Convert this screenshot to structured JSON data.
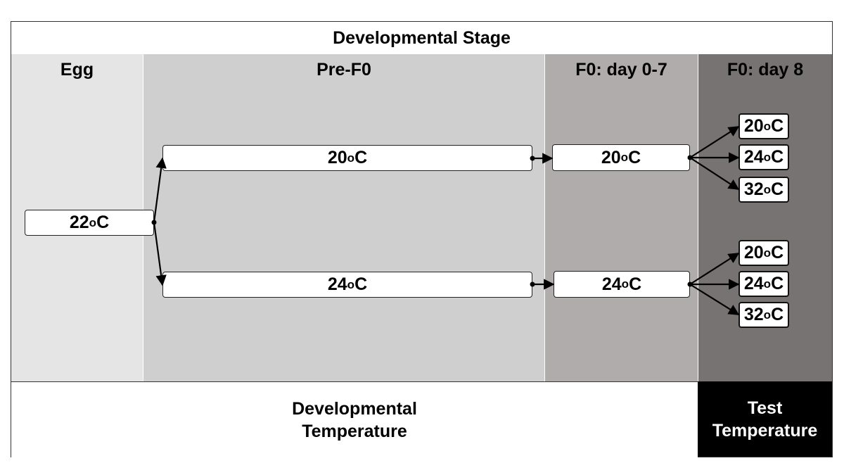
{
  "title": "Developmental Stage",
  "stages": {
    "egg": "Egg",
    "pre_f0": "Pre-F0",
    "f0_day_0_7": "F0: day 0-7",
    "f0_day_8": "F0: day 8"
  },
  "nodes": {
    "egg_temp": {
      "value": "22",
      "unit": "C"
    },
    "pre_upper": {
      "value": "20",
      "unit": "C"
    },
    "pre_lower": {
      "value": "24",
      "unit": "C"
    },
    "f07_upper": {
      "value": "20",
      "unit": "C"
    },
    "f07_lower": {
      "value": "24",
      "unit": "C"
    },
    "test_upper": [
      {
        "value": "20",
        "unit": "C"
      },
      {
        "value": "24",
        "unit": "C"
      },
      {
        "value": "32",
        "unit": "C"
      }
    ],
    "test_lower": [
      {
        "value": "20",
        "unit": "C"
      },
      {
        "value": "24",
        "unit": "C"
      },
      {
        "value": "32",
        "unit": "C"
      }
    ]
  },
  "degree_symbol": "o",
  "bottom": {
    "developmental_line1": "Developmental",
    "developmental_line2": "Temperature",
    "test_line1": "Test",
    "test_line2": "Temperature"
  },
  "colors": {
    "egg": "#e6e5e6",
    "pre_f0": "#d0cfd0",
    "f0_day_0_7": "#b0acac",
    "f0_day_8": "#787373",
    "test_footer": "#000000"
  }
}
